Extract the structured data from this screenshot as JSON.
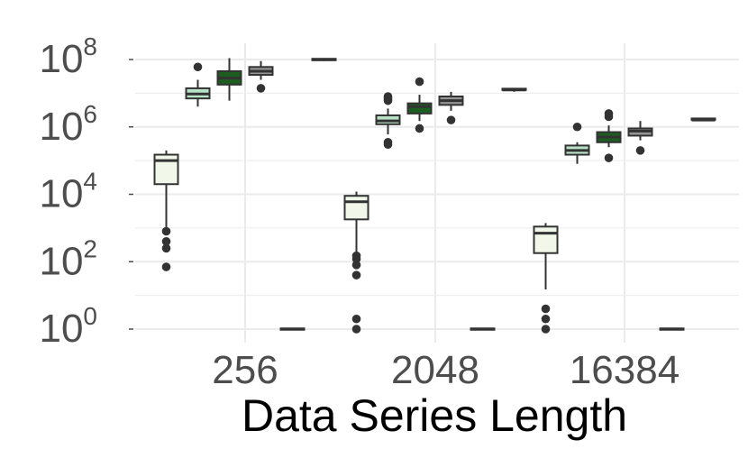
{
  "chart_data": {
    "type": "box",
    "title": "",
    "xlabel": "Data Series Length",
    "ylabel": "",
    "y_scale": "log10",
    "ylim": [
      0.5,
      300000000
    ],
    "y_ticks": [
      {
        "value": 1,
        "base": "10",
        "exp": "0"
      },
      {
        "value": 100,
        "base": "10",
        "exp": "2"
      },
      {
        "value": 10000,
        "base": "10",
        "exp": "4"
      },
      {
        "value": 1000000,
        "base": "10",
        "exp": "6"
      },
      {
        "value": 100000000,
        "base": "10",
        "exp": "8"
      }
    ],
    "categories": [
      "256",
      "2048",
      "16384"
    ],
    "grid": true,
    "legend": "none",
    "colors": {
      "very_light_green": "#f1f8e9",
      "light_green": "#b9e3c6",
      "dark_green": "#1b5e20",
      "gray": "#969696",
      "outline": "#333333",
      "grid": "#ebebeb"
    },
    "groups": [
      {
        "category": "256",
        "boxes": [
          {
            "fill": "very_light_green",
            "whisker_low": 1000,
            "q1": 20000,
            "median": 100000,
            "q3": 150000,
            "whisker_high": 200000,
            "outliers": [
              70,
              250,
              400,
              800
            ]
          },
          {
            "fill": "light_green",
            "whisker_low": 4000000,
            "q1": 7000000,
            "median": 9500000,
            "q3": 14000000,
            "whisker_high": 25000000,
            "outliers": [
              60000000
            ]
          },
          {
            "fill": "dark_green",
            "whisker_low": 6000000,
            "q1": 18000000,
            "median": 28000000,
            "q3": 45000000,
            "whisker_high": 110000000,
            "outliers": []
          },
          {
            "fill": "gray",
            "whisker_low": 25000000,
            "q1": 35000000,
            "median": 45000000,
            "q3": 60000000,
            "whisker_high": 90000000,
            "outliers": [
              14000000
            ]
          },
          {
            "fill": "gray",
            "whisker_low": 1,
            "q1": 1,
            "median": 1,
            "q3": 1,
            "whisker_high": 1,
            "outliers": []
          },
          {
            "fill": "gray",
            "whisker_low": 90000000,
            "q1": 95000000,
            "median": 100000000,
            "q3": 105000000,
            "whisker_high": 110000000,
            "outliers": []
          }
        ]
      },
      {
        "category": "2048",
        "boxes": [
          {
            "fill": "very_light_green",
            "whisker_low": 150,
            "q1": 1800,
            "median": 6000,
            "q3": 9000,
            "whisker_high": 12000,
            "outliers": [
              1,
              2,
              40,
              80,
              120,
              150
            ]
          },
          {
            "fill": "light_green",
            "whisker_low": 600000,
            "q1": 1200000,
            "median": 1500000,
            "q3": 2200000,
            "whisker_high": 3500000,
            "outliers": [
              300000,
              350000,
              6000000,
              7000000,
              8000000
            ]
          },
          {
            "fill": "dark_green",
            "whisker_low": 1500000,
            "q1": 2500000,
            "median": 4000000,
            "q3": 5000000,
            "whisker_high": 9000000,
            "outliers": [
              900000,
              22000000
            ]
          },
          {
            "fill": "gray",
            "whisker_low": 3000000,
            "q1": 4500000,
            "median": 6000000,
            "q3": 8000000,
            "whisker_high": 11000000,
            "outliers": [
              1600000
            ]
          },
          {
            "fill": "gray",
            "whisker_low": 1,
            "q1": 1,
            "median": 1,
            "q3": 1,
            "whisker_high": 1,
            "outliers": []
          },
          {
            "fill": "gray",
            "whisker_low": 11000000,
            "q1": 12000000,
            "median": 12500000,
            "q3": 13000000,
            "whisker_high": 14000000,
            "outliers": []
          }
        ]
      },
      {
        "category": "16384",
        "boxes": [
          {
            "fill": "very_light_green",
            "whisker_low": 15,
            "q1": 180,
            "median": 700,
            "q3": 1100,
            "whisker_high": 1400,
            "outliers": [
              1,
              2,
              4
            ]
          },
          {
            "fill": "light_green",
            "whisker_low": 80000,
            "q1": 150000,
            "median": 200000,
            "q3": 280000,
            "whisker_high": 350000,
            "outliers": [
              1000000
            ]
          },
          {
            "fill": "dark_green",
            "whisker_low": 250000,
            "q1": 350000,
            "median": 500000,
            "q3": 700000,
            "whisker_high": 1100000,
            "outliers": [
              120000,
              2000000,
              2500000
            ]
          },
          {
            "fill": "gray",
            "whisker_low": 400000,
            "q1": 550000,
            "median": 750000,
            "q3": 900000,
            "whisker_high": 1500000,
            "outliers": [
              200000
            ]
          },
          {
            "fill": "gray",
            "whisker_low": 1,
            "q1": 1,
            "median": 1,
            "q3": 1,
            "whisker_high": 1,
            "outliers": []
          },
          {
            "fill": "gray",
            "whisker_low": 1500000,
            "q1": 1550000,
            "median": 1600000,
            "q3": 1700000,
            "whisker_high": 1800000,
            "outliers": []
          }
        ]
      }
    ]
  }
}
